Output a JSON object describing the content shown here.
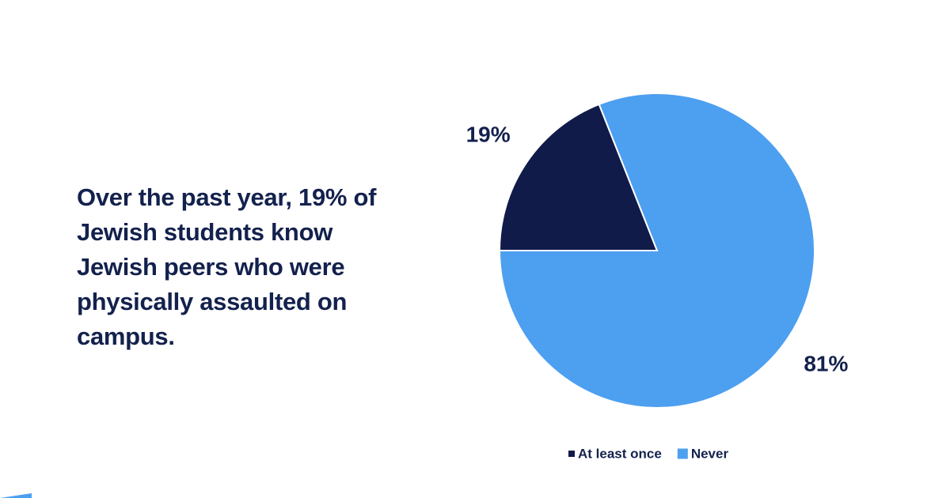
{
  "chart_data": {
    "type": "pie",
    "title": "Over the past year, 19% of Jewish students know Jewish peers who were physically assaulted on campus.",
    "categories": [
      "At least once",
      "Never"
    ],
    "values": [
      19,
      81
    ],
    "value_labels": [
      "19%",
      "81%"
    ],
    "colors": [
      "#111b4a",
      "#4d9ff0"
    ]
  }
}
